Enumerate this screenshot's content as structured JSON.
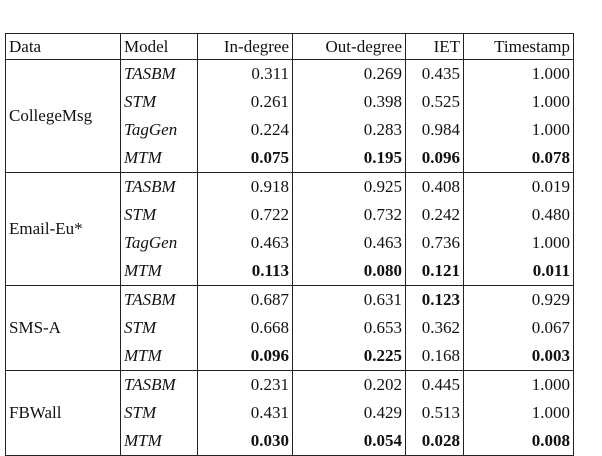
{
  "headers": [
    "Data",
    "Model",
    "In-degree",
    "Out-degree",
    "IET",
    "Timestamp"
  ],
  "groups": [
    {
      "data": "CollegeMsg",
      "rows": [
        {
          "model": "TASBM",
          "v": [
            "0.311",
            "0.269",
            "0.435",
            "1.000"
          ],
          "bold": [
            false,
            false,
            false,
            false
          ]
        },
        {
          "model": "STM",
          "v": [
            "0.261",
            "0.398",
            "0.525",
            "1.000"
          ],
          "bold": [
            false,
            false,
            false,
            false
          ]
        },
        {
          "model": "TagGen",
          "v": [
            "0.224",
            "0.283",
            "0.984",
            "1.000"
          ],
          "bold": [
            false,
            false,
            false,
            false
          ]
        },
        {
          "model": "MTM",
          "v": [
            "0.075",
            "0.195",
            "0.096",
            "0.078"
          ],
          "bold": [
            true,
            true,
            true,
            true
          ]
        }
      ]
    },
    {
      "data": "Email-Eu*",
      "rows": [
        {
          "model": "TASBM",
          "v": [
            "0.918",
            "0.925",
            "0.408",
            "0.019"
          ],
          "bold": [
            false,
            false,
            false,
            false
          ]
        },
        {
          "model": "STM",
          "v": [
            "0.722",
            "0.732",
            "0.242",
            "0.480"
          ],
          "bold": [
            false,
            false,
            false,
            false
          ]
        },
        {
          "model": "TagGen",
          "v": [
            "0.463",
            "0.463",
            "0.736",
            "1.000"
          ],
          "bold": [
            false,
            false,
            false,
            false
          ]
        },
        {
          "model": "MTM",
          "v": [
            "0.113",
            "0.080",
            "0.121",
            "0.011"
          ],
          "bold": [
            true,
            true,
            true,
            true
          ]
        }
      ]
    },
    {
      "data": "SMS-A",
      "rows": [
        {
          "model": "TASBM",
          "v": [
            "0.687",
            "0.631",
            "0.123",
            "0.929"
          ],
          "bold": [
            false,
            false,
            true,
            false
          ]
        },
        {
          "model": "STM",
          "v": [
            "0.668",
            "0.653",
            "0.362",
            "0.067"
          ],
          "bold": [
            false,
            false,
            false,
            false
          ]
        },
        {
          "model": "MTM",
          "v": [
            "0.096",
            "0.225",
            "0.168",
            "0.003"
          ],
          "bold": [
            true,
            true,
            false,
            true
          ]
        }
      ]
    },
    {
      "data": "FBWall",
      "rows": [
        {
          "model": "TASBM",
          "v": [
            "0.231",
            "0.202",
            "0.445",
            "1.000"
          ],
          "bold": [
            false,
            false,
            false,
            false
          ]
        },
        {
          "model": "STM",
          "v": [
            "0.431",
            "0.429",
            "0.513",
            "1.000"
          ],
          "bold": [
            false,
            false,
            false,
            false
          ]
        },
        {
          "model": "MTM",
          "v": [
            "0.030",
            "0.054",
            "0.028",
            "0.008"
          ],
          "bold": [
            true,
            true,
            true,
            true
          ]
        }
      ]
    }
  ]
}
